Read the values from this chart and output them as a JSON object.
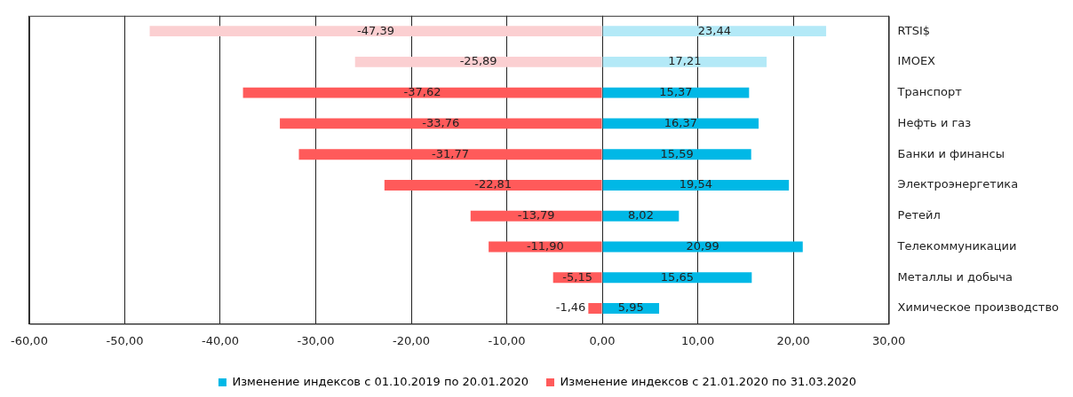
{
  "chart_data": {
    "type": "bar",
    "orientation": "horizontal",
    "categories": [
      "RTSI$",
      "IMOEX",
      "Транспорт",
      "Нефть и газ",
      "Банки и финансы",
      "Электроэнергетика",
      "Ретейл",
      "Телекоммуникации",
      "Металлы и добыча",
      "Химическое производство"
    ],
    "series": [
      {
        "name": "Изменение индексов с 01.10.2019 по 20.01.2020",
        "color": "#00b8e6",
        "colors": [
          "#b3e9f7",
          "#b3e9f7",
          "#00b8e6",
          "#00b8e6",
          "#00b8e6",
          "#00b8e6",
          "#00b8e6",
          "#00b8e6",
          "#00b8e6",
          "#00b8e6"
        ],
        "values": [
          23.44,
          17.21,
          15.37,
          16.37,
          15.59,
          19.54,
          8.02,
          20.99,
          15.65,
          5.95
        ],
        "value_labels": [
          "23,44",
          "17,21",
          "15,37",
          "16,37",
          "15,59",
          "19,54",
          "8,02",
          "20,99",
          "15,65",
          "5,95"
        ]
      },
      {
        "name": "Изменение индексов с 21.01.2020 по 31.03.2020",
        "color": "#ff5a5a",
        "colors": [
          "#fbcfd1",
          "#fbcfd1",
          "#ff5a5a",
          "#ff5a5a",
          "#ff5a5a",
          "#ff5a5a",
          "#ff5a5a",
          "#ff5a5a",
          "#ff5a5a",
          "#ff5a5a"
        ],
        "values": [
          -47.39,
          -25.89,
          -37.62,
          -33.76,
          -31.77,
          -22.81,
          -13.79,
          -11.9,
          -5.15,
          -1.46
        ],
        "value_labels": [
          "-47,39",
          "-25,89",
          "-37,62",
          "-33,76",
          "-31,77",
          "-22,81",
          "-13,79",
          "-11,90",
          "-5,15",
          "-1,46"
        ]
      }
    ],
    "xlim": [
      -60,
      30
    ],
    "xticks": [
      {
        "value": -60,
        "label": "-60,00"
      },
      {
        "value": -50,
        "label": "-50,00"
      },
      {
        "value": -40,
        "label": "-40,00"
      },
      {
        "value": -30,
        "label": "-30,00"
      },
      {
        "value": -20,
        "label": "-20,00"
      },
      {
        "value": -10,
        "label": "-10,00"
      },
      {
        "value": 0,
        "label": "0,00"
      },
      {
        "value": 10,
        "label": "10,00"
      },
      {
        "value": 20,
        "label": "20,00"
      },
      {
        "value": 30,
        "label": "30,00"
      }
    ],
    "grid": "x",
    "legend": "bottom",
    "stacked": true
  }
}
